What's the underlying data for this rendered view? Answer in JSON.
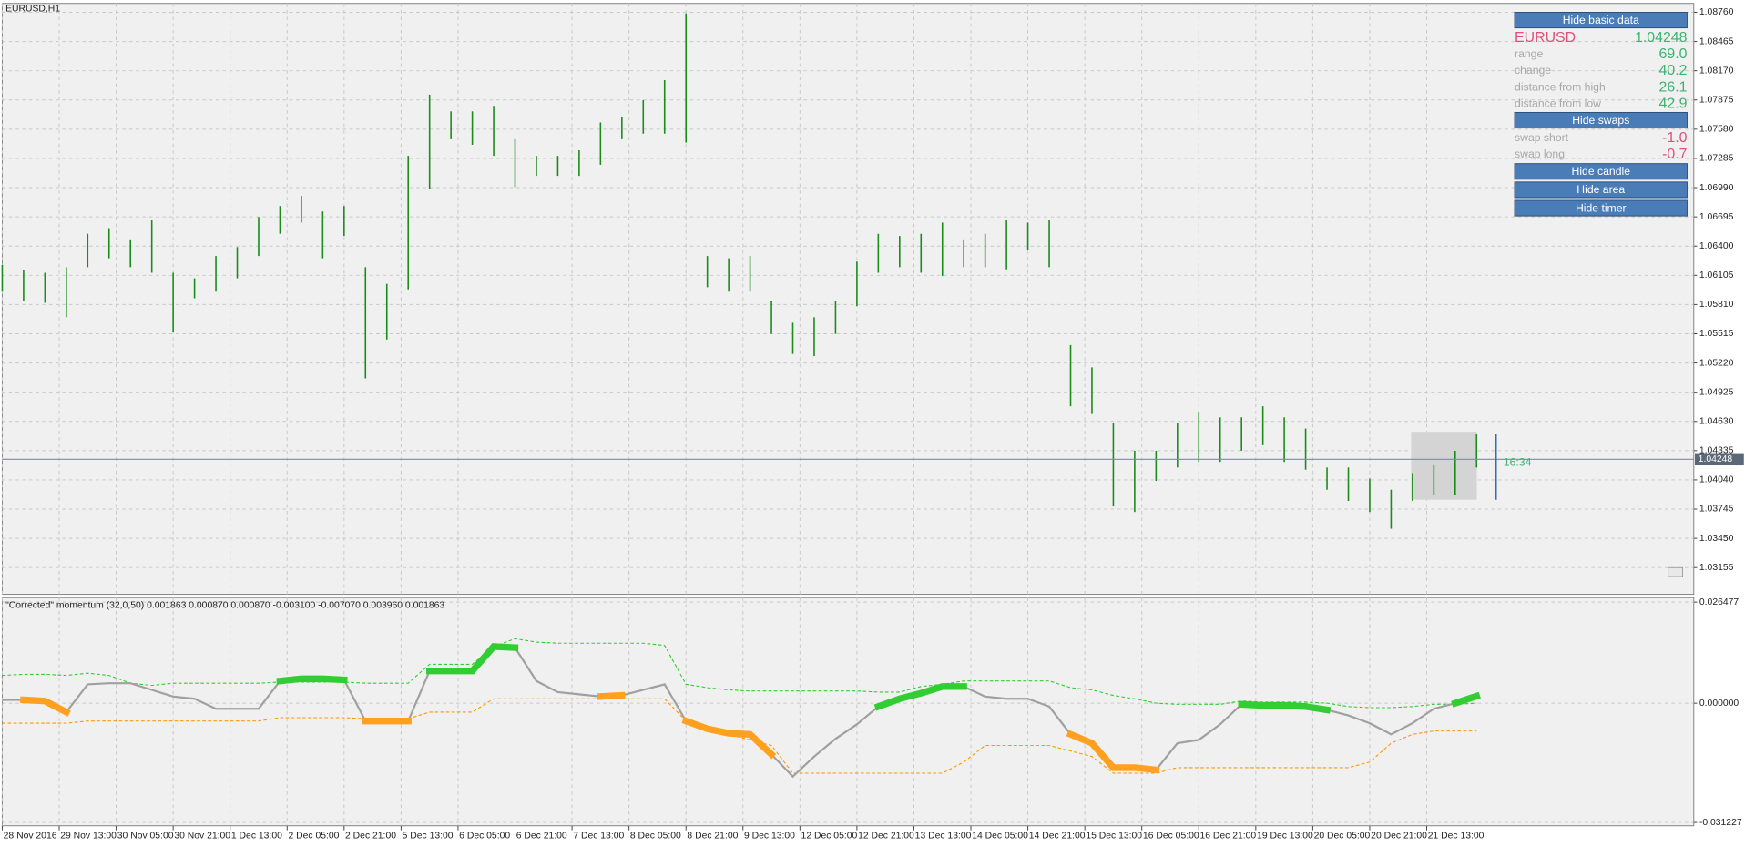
{
  "chart_data": [
    {
      "type": "range",
      "title": "EURUSD,H1",
      "color": "#1a8c1a",
      "current_price": 1.04248,
      "grid": true,
      "xlim": [
        0,
        475
      ],
      "ylim": [
        1.02885,
        1.0885
      ],
      "xticks": [
        {
          "value": 0,
          "label": "28 Nov 2016"
        },
        {
          "value": 16,
          "label": "29 Nov 13:00"
        },
        {
          "value": 32,
          "label": "30 Nov 05:00"
        },
        {
          "value": 48,
          "label": "30 Nov 21:00"
        },
        {
          "value": 64,
          "label": "1 Dec 13:00"
        },
        {
          "value": 80,
          "label": "2 Dec 05:00"
        },
        {
          "value": 96,
          "label": "2 Dec 21:00"
        },
        {
          "value": 112,
          "label": "5 Dec 13:00"
        },
        {
          "value": 128,
          "label": "6 Dec 05:00"
        },
        {
          "value": 144,
          "label": "6 Dec 21:00"
        },
        {
          "value": 160,
          "label": "7 Dec 13:00"
        },
        {
          "value": 176,
          "label": "8 Dec 05:00"
        },
        {
          "value": 192,
          "label": "8 Dec 21:00"
        },
        {
          "value": 208,
          "label": "9 Dec 13:00"
        },
        {
          "value": 224,
          "label": "12 Dec 05:00"
        },
        {
          "value": 240,
          "label": "12 Dec 21:00"
        },
        {
          "value": 256,
          "label": "13 Dec 13:00"
        },
        {
          "value": 272,
          "label": "14 Dec 05:00"
        },
        {
          "value": 288,
          "label": "14 Dec 21:00"
        },
        {
          "value": 304,
          "label": "15 Dec 13:00"
        },
        {
          "value": 320,
          "label": "16 Dec 05:00"
        },
        {
          "value": 336,
          "label": "16 Dec 21:00"
        },
        {
          "value": 352,
          "label": "19 Dec 13:00"
        },
        {
          "value": 368,
          "label": "20 Dec 05:00"
        },
        {
          "value": 384,
          "label": "20 Dec 21:00"
        },
        {
          "value": 400,
          "label": "21 Dec 13:00"
        }
      ],
      "yticks": [
        {
          "value": 1.0876,
          "label": "1.08760"
        },
        {
          "value": 1.08465,
          "label": "1.08465"
        },
        {
          "value": 1.0817,
          "label": "1.08170"
        },
        {
          "value": 1.07875,
          "label": "1.07875"
        },
        {
          "value": 1.0758,
          "label": "1.07580"
        },
        {
          "value": 1.07285,
          "label": "1.07285"
        },
        {
          "value": 1.0699,
          "label": "1.06990"
        },
        {
          "value": 1.06695,
          "label": "1.06695"
        },
        {
          "value": 1.064,
          "label": "1.06400"
        },
        {
          "value": 1.06105,
          "label": "1.06105"
        },
        {
          "value": 1.0581,
          "label": "1.05810"
        },
        {
          "value": 1.05515,
          "label": "1.05515"
        },
        {
          "value": 1.0522,
          "label": "1.05220"
        },
        {
          "value": 1.04925,
          "label": "1.04925"
        },
        {
          "value": 1.0463,
          "label": "1.04630"
        },
        {
          "value": 1.04335,
          "label": "1.04335"
        },
        {
          "value": 1.0404,
          "label": "1.04040"
        },
        {
          "value": 1.03745,
          "label": "1.03745"
        },
        {
          "value": 1.0345,
          "label": "1.03450"
        },
        {
          "value": 1.03155,
          "label": "1.03155"
        }
      ],
      "x": [
        0,
        6,
        12,
        18,
        24,
        30,
        36,
        42,
        48,
        54,
        60,
        66,
        72,
        78,
        84,
        90,
        96,
        102,
        108,
        114,
        120,
        126,
        132,
        138,
        144,
        150,
        156,
        162,
        168,
        174,
        180,
        186,
        192,
        198,
        204,
        210,
        216,
        222,
        228,
        234,
        240,
        246,
        252,
        258,
        264,
        270,
        276,
        282,
        288,
        294,
        300,
        306,
        312,
        318,
        324,
        330,
        336,
        342,
        348,
        354,
        360,
        366,
        372,
        378,
        384,
        390,
        396,
        402,
        408,
        414
      ],
      "high": [
        1.0621,
        1.06154,
        1.06131,
        1.06187,
        1.06524,
        1.06581,
        1.06468,
        1.06659,
        1.06131,
        1.06075,
        1.063,
        1.0639,
        1.06693,
        1.06805,
        1.06906,
        1.06749,
        1.06805,
        1.06187,
        1.06019,
        1.07311,
        1.07929,
        1.0776,
        1.0776,
        1.07816,
        1.07479,
        1.07311,
        1.07311,
        1.07367,
        1.07648,
        1.07704,
        1.07873,
        1.08075,
        1.08749,
        1.063,
        1.06277,
        1.063,
        1.0585,
        1.05626,
        1.05682,
        1.0585,
        1.06244,
        1.06524,
        1.06502,
        1.06524,
        1.06637,
        1.06468,
        1.06524,
        1.06659,
        1.06637,
        1.06659,
        1.05401,
        1.05176,
        1.04615,
        1.04334,
        1.04334,
        1.04615,
        1.04727,
        1.04671,
        1.04671,
        1.04783,
        1.04671,
        1.04558,
        1.04165,
        1.04165,
        1.04053,
        1.03941,
        1.04109,
        1.04188,
        1.04334,
        1.04502
      ],
      "low": [
        1.0594,
        1.0585,
        1.05828,
        1.05682,
        1.06187,
        1.06277,
        1.06187,
        1.06131,
        1.05536,
        1.05873,
        1.0594,
        1.06075,
        1.063,
        1.06524,
        1.06637,
        1.06277,
        1.06502,
        1.05064,
        1.05457,
        1.05963,
        1.06974,
        1.07479,
        1.07423,
        1.07311,
        1.06996,
        1.07109,
        1.07109,
        1.07109,
        1.07221,
        1.07479,
        1.07535,
        1.07535,
        1.07446,
        1.05985,
        1.0594,
        1.0594,
        1.05513,
        1.05311,
        1.05289,
        1.05513,
        1.05794,
        1.06131,
        1.06187,
        1.06131,
        1.06098,
        1.06187,
        1.06187,
        1.06165,
        1.06356,
        1.06187,
        1.04783,
        1.04705,
        1.03772,
        1.03716,
        1.0403,
        1.04165,
        1.04221,
        1.04221,
        1.04334,
        1.0439,
        1.04221,
        1.04143,
        1.03941,
        1.03828,
        1.03716,
        1.03547,
        1.03828,
        1.03884,
        1.03884,
        1.04165
      ]
    },
    {
      "type": "line",
      "title": "\"Corrected\" momentum (32,0,50) 0.001863 0.000870 0.000870 -0.003100 -0.007070 0.003960 0.001863",
      "grid": true,
      "xlim": [
        0,
        475
      ],
      "ylim": [
        -0.0321,
        0.027641
      ],
      "yticks": [
        {
          "value": 0.026477,
          "label": "0.026477"
        },
        {
          "value": 0,
          "label": "0.000000"
        },
        {
          "value": -0.031227,
          "label": "-0.031227"
        }
      ],
      "x": [
        0,
        6,
        12,
        18,
        24,
        30,
        36,
        42,
        48,
        54,
        60,
        66,
        72,
        78,
        84,
        90,
        96,
        102,
        108,
        114,
        120,
        126,
        132,
        138,
        144,
        150,
        156,
        162,
        168,
        174,
        180,
        186,
        192,
        198,
        204,
        210,
        216,
        222,
        228,
        234,
        240,
        246,
        252,
        258,
        264,
        270,
        276,
        282,
        288,
        294,
        300,
        306,
        312,
        318,
        324,
        330,
        336,
        342,
        348,
        354,
        360,
        366,
        372,
        378,
        384,
        390,
        396,
        402,
        408,
        414
      ],
      "series": [
        {
          "color": "#32cd32",
          "style": "dashed",
          "values": [
            0.007274,
            0.007565,
            0.007565,
            0.007274,
            0.007856,
            0.007274,
            0.005237,
            0.004655,
            0.005237,
            0.005237,
            0.005237,
            0.005237,
            0.005237,
            0.005528,
            0.005528,
            0.005528,
            0.005528,
            0.005237,
            0.005237,
            0.005237,
            0.010183,
            0.010183,
            0.010183,
            0.014839,
            0.016875,
            0.016002,
            0.015711,
            0.015711,
            0.015711,
            0.015711,
            0.015711,
            0.015129,
            0.004946,
            0.004073,
            0.003491,
            0.0032,
            0.0032,
            0.0032,
            0.0032,
            0.0032,
            0.0032,
            0.00291,
            0.00291,
            0.004364,
            0.004946,
            0.005819,
            0.005819,
            0.005819,
            0.005819,
            0.005819,
            0.004073,
            0.003491,
            0.002037,
            0.001164,
            0,
            -0.000291,
            -0.000291,
            -0.000291,
            0.000582,
            0.000291,
            0.000291,
            0.000291,
            0,
            -0.000873,
            -0.001164,
            -0.001164,
            -0.000873,
            -0.000291,
            -0.000291,
            0
          ]
        },
        {
          "color": "#ff9900",
          "style": "dashed",
          "values": [
            -0.005237,
            -0.005237,
            -0.005237,
            -0.005237,
            -0.004655,
            -0.004655,
            -0.004655,
            -0.004655,
            -0.004655,
            -0.004655,
            -0.004655,
            -0.004655,
            -0.004655,
            -0.003782,
            -0.003782,
            -0.003782,
            -0.003782,
            -0.004073,
            -0.004073,
            -0.004073,
            -0.002328,
            -0.002328,
            -0.002328,
            0.001164,
            0.001164,
            0.001164,
            0.001164,
            0.001164,
            0.001164,
            0.001164,
            0.001164,
            0.001164,
            -0.004655,
            -0.006692,
            -0.008147,
            -0.009601,
            -0.011056,
            -0.01833,
            -0.01833,
            -0.01833,
            -0.01833,
            -0.01833,
            -0.01833,
            -0.01833,
            -0.01833,
            -0.01542,
            -0.011056,
            -0.011056,
            -0.011056,
            -0.011056,
            -0.012511,
            -0.013966,
            -0.01833,
            -0.01833,
            -0.01833,
            -0.016875,
            -0.016875,
            -0.016875,
            -0.016875,
            -0.016875,
            -0.016875,
            -0.016875,
            -0.016875,
            -0.016875,
            -0.01542,
            -0.010474,
            -0.008147,
            -0.007274,
            -0.007274,
            -0.007274
          ]
        },
        {
          "color": "#a0a0a0",
          "style": "solid",
          "values": [
            0.000873,
            0.000873,
            0.000582,
            -0.002328,
            0.004946,
            0.005237,
            0.005237,
            0.003491,
            0.001746,
            0.001164,
            -0.001455,
            -0.001455,
            -0.001455,
            0.005819,
            0.006401,
            0.006401,
            0.00611,
            -0.004655,
            -0.004655,
            -0.004655,
            0.008438,
            0.008438,
            0.008438,
            0.014839,
            0.014548,
            0.005819,
            0.00291,
            0.002328,
            0.001746,
            0.002037,
            0.003491,
            0.004946,
            -0.004655,
            -0.006692,
            -0.007856,
            -0.008147,
            -0.013384,
            -0.019203,
            -0.013966,
            -0.00931,
            -0.005528,
            -0.000873,
            0.001164,
            0.002619,
            0.004364,
            0.004364,
            0.001746,
            0.001164,
            0.001164,
            -0.000873,
            -0.008147,
            -0.010474,
            -0.016875,
            -0.016875,
            -0.017457,
            -0.010474,
            -0.009601,
            -0.005528,
            -0.000291,
            -0.000582,
            -0.000582,
            -0.000873,
            -0.001746,
            -0.0032,
            -0.005237,
            -0.008147,
            -0.005237,
            -0.001455,
            0,
            0.001863
          ]
        },
        {
          "color": "#32cd32",
          "style": "thick",
          "values": [
            null,
            null,
            null,
            null,
            null,
            null,
            null,
            null,
            null,
            null,
            null,
            null,
            null,
            0.005819,
            0.006401,
            0.006401,
            0.00611,
            null,
            null,
            null,
            0.008438,
            0.008438,
            0.008438,
            0.014839,
            0.014548,
            null,
            null,
            null,
            null,
            null,
            null,
            null,
            null,
            null,
            null,
            null,
            null,
            null,
            null,
            null,
            null,
            -0.000873,
            0.001164,
            0.002619,
            0.004364,
            0.004364,
            null,
            null,
            null,
            null,
            null,
            null,
            null,
            null,
            null,
            null,
            null,
            null,
            -0.000291,
            -0.000582,
            -0.000582,
            -0.000873,
            -0.001746,
            null,
            null,
            null,
            null,
            null,
            0,
            0.001863
          ]
        },
        {
          "color": "#ffa020",
          "style": "thick",
          "values": [
            null,
            0.000873,
            0.000582,
            -0.002328,
            null,
            null,
            null,
            null,
            null,
            null,
            null,
            null,
            null,
            null,
            null,
            null,
            null,
            -0.004655,
            -0.004655,
            -0.004655,
            null,
            null,
            null,
            null,
            null,
            null,
            null,
            null,
            0.001746,
            0.002037,
            null,
            null,
            -0.004655,
            -0.006692,
            -0.007856,
            -0.008147,
            -0.013384,
            null,
            null,
            null,
            null,
            null,
            null,
            null,
            null,
            null,
            null,
            null,
            null,
            null,
            -0.008147,
            -0.010474,
            -0.016875,
            -0.016875,
            -0.017457,
            null,
            null,
            null,
            null,
            null,
            null,
            null,
            null,
            null,
            null,
            null,
            null,
            null,
            null,
            null
          ]
        }
      ]
    }
  ],
  "panel": {
    "hide_basic": "Hide basic data",
    "symbol": "EURUSD",
    "stats": [
      {
        "label": "range",
        "value": "69.0"
      },
      {
        "label": "change",
        "value": "40.2"
      },
      {
        "label": "distance from high",
        "value": "26.1"
      },
      {
        "label": "distance from low",
        "value": "42.9"
      }
    ],
    "hide_swaps": "Hide swaps",
    "swaps": [
      {
        "label": "swap short",
        "value": "-1.0"
      },
      {
        "label": "swap long",
        "value": "-0.7"
      }
    ],
    "buttons": [
      "Hide candle",
      "Hide area",
      "Hide timer"
    ]
  },
  "timer": "16:34"
}
